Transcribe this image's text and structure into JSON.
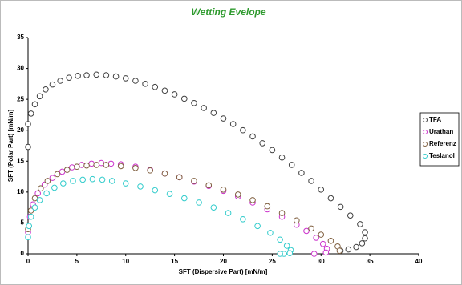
{
  "chart_data": {
    "type": "scatter",
    "title": "Wetting Evelope",
    "x_label": "SFT (Dispersive Part) [mN/m]",
    "y_label": "SFT (Polar Part) [mN/m]",
    "xlim": [
      0,
      40
    ],
    "xticks": [
      0,
      5,
      10,
      15,
      20,
      25,
      30,
      35,
      40
    ],
    "ylim": [
      0,
      35
    ],
    "yticks": [
      0,
      5,
      10,
      15,
      20,
      25,
      30,
      35
    ],
    "grid": false,
    "legend": "right",
    "series": [
      {
        "name": "TFA",
        "color": "#404040",
        "x": [
          0,
          0,
          0.3,
          0.7,
          1.2,
          1.8,
          2.5,
          3.3,
          4.2,
          5.1,
          6,
          7,
          8,
          9,
          10,
          11,
          12,
          13,
          14,
          15,
          16,
          17,
          18,
          19,
          20,
          21,
          22,
          23,
          24,
          25,
          26,
          27,
          28,
          29,
          30,
          31,
          32,
          33,
          34,
          34.5,
          34.5,
          34.2,
          33.6,
          32.8,
          32
        ],
        "values": [
          17.3,
          21,
          22.7,
          24.2,
          25.5,
          26.6,
          27.4,
          28,
          28.5,
          28.8,
          28.9,
          29,
          28.9,
          28.7,
          28.4,
          28,
          27.5,
          27,
          26.4,
          25.8,
          25.1,
          24.4,
          23.6,
          22.8,
          21.9,
          21,
          20,
          19,
          17.9,
          16.8,
          15.6,
          14.4,
          13.1,
          11.8,
          10.4,
          9,
          7.6,
          6.2,
          4.8,
          3.5,
          2.5,
          1.7,
          1.1,
          0.7,
          0.5
        ]
      },
      {
        "name": "Urathan",
        "color": "#cc33cc",
        "x": [
          0,
          0.2,
          0.5,
          1,
          1.7,
          2.5,
          3.5,
          4.5,
          5.5,
          6.5,
          7.5,
          8.5,
          9.5,
          11,
          12.5,
          14,
          15.5,
          17,
          18.5,
          20,
          21.5,
          23,
          24.5,
          26,
          27.5,
          28.5,
          29.5,
          30.2,
          30.6,
          30.5,
          29.3
        ],
        "values": [
          3.5,
          6,
          8,
          9.8,
          11.2,
          12.3,
          13.3,
          14,
          14.4,
          14.6,
          14.7,
          14.6,
          14.5,
          14.1,
          13.6,
          13,
          12.4,
          11.7,
          11,
          10.2,
          9.3,
          8.3,
          7.2,
          6,
          4.7,
          3.7,
          2.6,
          1.6,
          0.8,
          0.2,
          0
        ]
      },
      {
        "name": "Referenz",
        "color": "#806040",
        "x": [
          0,
          0.3,
          0.7,
          1.3,
          2,
          3,
          4,
          5,
          6,
          7,
          8,
          9.5,
          11,
          12.5,
          14,
          15.5,
          17,
          18.5,
          20,
          21.5,
          23,
          24.5,
          26,
          27.5,
          29,
          30,
          31,
          31.7,
          31.9
        ],
        "values": [
          4,
          7,
          9,
          10.6,
          11.8,
          12.9,
          13.6,
          14.1,
          14.3,
          14.4,
          14.4,
          14.2,
          13.9,
          13.5,
          13,
          12.4,
          11.8,
          11.1,
          10.4,
          9.6,
          8.7,
          7.7,
          6.6,
          5.4,
          4.1,
          3.1,
          2.1,
          1.2,
          0.5
        ]
      },
      {
        "name": "Teslanol",
        "color": "#33cccc",
        "x": [
          0,
          0.1,
          0.3,
          0.7,
          1.2,
          1.9,
          2.7,
          3.6,
          4.6,
          5.6,
          6.6,
          7.6,
          8.6,
          10,
          11.5,
          13,
          14.5,
          16,
          17.5,
          19,
          20.5,
          22,
          23.5,
          24.8,
          25.8,
          26.5,
          26.9,
          26.8,
          26.2,
          25.8
        ],
        "values": [
          2.7,
          4.5,
          6,
          7.5,
          8.7,
          9.8,
          10.7,
          11.4,
          11.8,
          12,
          12.1,
          12,
          11.8,
          11.4,
          10.9,
          10.3,
          9.7,
          9,
          8.3,
          7.5,
          6.6,
          5.6,
          4.5,
          3.4,
          2.3,
          1.3,
          0.6,
          0.1,
          0,
          0
        ]
      }
    ]
  }
}
